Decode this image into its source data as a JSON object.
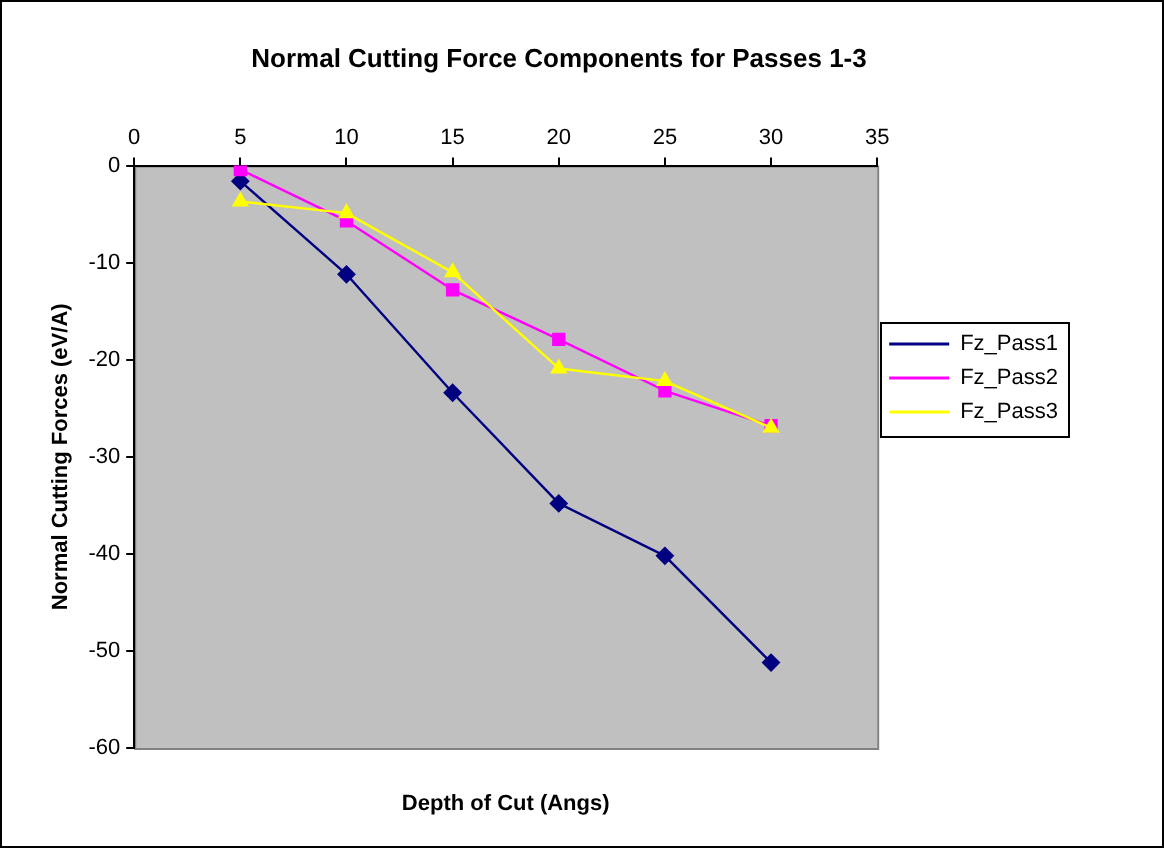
{
  "chart_data": {
    "type": "line",
    "title": "Normal Cutting Force Components for Passes 1-3",
    "xlabel": "Depth of Cut (Angs)",
    "ylabel": "Normal Cutting Forces (eV/A)",
    "x": [
      5,
      10,
      15,
      20,
      25,
      30
    ],
    "series": [
      {
        "name": "Fz_Pass1",
        "color": "#000080",
        "marker": "diamond",
        "values": [
          -1.6,
          -11.2,
          -23.4,
          -34.8,
          -40.2,
          -51.2
        ]
      },
      {
        "name": "Fz_Pass2",
        "color": "#ff00ff",
        "marker": "square",
        "values": [
          -0.4,
          -5.7,
          -12.8,
          -17.9,
          -23.2,
          -26.8
        ]
      },
      {
        "name": "Fz_Pass3",
        "color": "#ffff00",
        "marker": "triangle",
        "values": [
          -3.7,
          -4.9,
          -11.0,
          -20.9,
          -22.2,
          -27.0
        ]
      }
    ],
    "xlim": [
      0,
      35
    ],
    "xticks": [
      0,
      5,
      10,
      15,
      20,
      25,
      30,
      35
    ],
    "ylim": [
      -60,
      0
    ],
    "yticks": [
      -60,
      -50,
      -40,
      -30,
      -20,
      -10,
      0
    ],
    "grid": false,
    "legend": "right",
    "line_style": "solid"
  }
}
